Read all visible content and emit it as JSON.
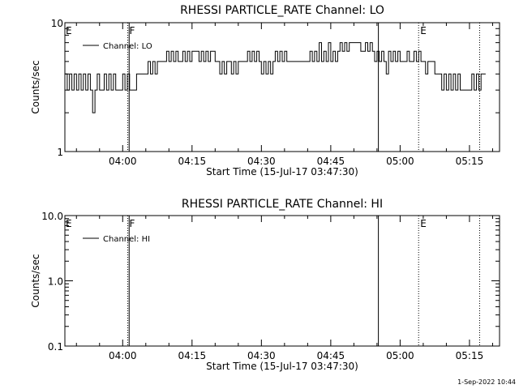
{
  "footer": {
    "timestamp": "1-Sep-2022 10:44"
  },
  "chart_data": [
    {
      "type": "line",
      "title": "RHESSI PARTICLE_RATE Channel: LO",
      "xlabel": "Start Time (15-Jul-17 03:47:30)",
      "ylabel": "Counts/sec",
      "yscale": "log",
      "ylim": [
        1,
        10
      ],
      "yticks": [
        1,
        10
      ],
      "ytick_labels": [
        "1",
        "10"
      ],
      "xlim_minutes": [
        0,
        94
      ],
      "xticks_minutes": [
        12.5,
        27.5,
        42.5,
        57.5,
        72.5,
        87.5
      ],
      "xtick_labels": [
        "04:00",
        "04:15",
        "04:30",
        "04:45",
        "05:00",
        "05:15"
      ],
      "legend": {
        "position": "top-left",
        "entries": [
          "Channel: LO"
        ]
      },
      "vlines": [
        {
          "x": 13.6,
          "style": "dotted",
          "label": "F"
        },
        {
          "x": 13.9,
          "style": "solid",
          "label": ""
        },
        {
          "x": 67.8,
          "style": "solid",
          "label": ""
        },
        {
          "x": 76.5,
          "style": "dotted",
          "label": "E"
        },
        {
          "x": 89.7,
          "style": "dotted",
          "label": ""
        }
      ],
      "edge_labels": [
        {
          "x": 0,
          "label": "E"
        }
      ],
      "series": [
        {
          "x": [
            0,
            0.5,
            1,
            1.5,
            2,
            2.5,
            3,
            3.5,
            4,
            4.5,
            5,
            5.5,
            6,
            6.5,
            7,
            7.5,
            8,
            8.5,
            9,
            9.5,
            10,
            10.5,
            11,
            11.5,
            12,
            12.5,
            13,
            13.5,
            14,
            14.5,
            15,
            15.5,
            16,
            16.5,
            17,
            17.5,
            18,
            18.5,
            19,
            19.5,
            20,
            20.5,
            21,
            21.5,
            22,
            22.5,
            23,
            23.5,
            24,
            24.5,
            25,
            25.5,
            26,
            26.5,
            27,
            27.5,
            28,
            28.5,
            29,
            29.5,
            30,
            30.5,
            31,
            31.5,
            32,
            32.5,
            33,
            33.5,
            34,
            34.5,
            35,
            35.5,
            36,
            36.5,
            37,
            37.5,
            38,
            38.5,
            39,
            39.5,
            40,
            40.5,
            41,
            41.5,
            42,
            42.5,
            43,
            43.5,
            44,
            44.5,
            45,
            45.5,
            46,
            46.5,
            47,
            47.5,
            48,
            48.5,
            49,
            49.5,
            50,
            50.5,
            51,
            51.5,
            52,
            52.5,
            53,
            53.5,
            54,
            54.5,
            55,
            55.5,
            56,
            56.5,
            57,
            57.5,
            58,
            58.5,
            59,
            59.5,
            60,
            60.5,
            61,
            61.5,
            62,
            62.5,
            63,
            63.5,
            64,
            64.5,
            65,
            65.5,
            66,
            66.5,
            67,
            67.5,
            68,
            68.5,
            69,
            69.5,
            70,
            70.5,
            71,
            71.5,
            72,
            72.5,
            73,
            73.5,
            74,
            74.5,
            75,
            75.5,
            76,
            76.5,
            77,
            77.5,
            78,
            78.5,
            79,
            79.5,
            80,
            80.5,
            81,
            81.5,
            82,
            82.5,
            83,
            83.5,
            84,
            84.5,
            85,
            85.5,
            86,
            86.5,
            87,
            87.5,
            88,
            88.5,
            89,
            89.5,
            90,
            90.5
          ],
          "values": [
            4,
            3,
            4,
            3,
            4,
            3,
            4,
            3,
            4,
            3,
            4,
            3,
            2,
            3,
            4,
            3,
            3,
            4,
            3,
            4,
            3,
            4,
            3,
            3,
            3,
            4,
            3,
            4,
            3,
            3,
            3,
            4,
            4,
            4,
            4,
            4,
            5,
            4,
            5,
            4,
            5,
            5,
            5,
            5,
            6,
            5,
            6,
            5,
            6,
            5,
            5,
            6,
            5,
            6,
            5,
            6,
            6,
            6,
            5,
            6,
            5,
            6,
            5,
            6,
            6,
            5,
            5,
            4,
            5,
            4,
            5,
            5,
            4,
            5,
            4,
            5,
            5,
            5,
            5,
            6,
            5,
            6,
            5,
            6,
            5,
            4,
            5,
            4,
            5,
            4,
            5,
            6,
            5,
            6,
            5,
            6,
            5,
            5,
            5,
            5,
            5,
            5,
            5,
            5,
            5,
            5,
            6,
            5,
            6,
            5,
            7,
            5,
            6,
            5,
            7,
            5,
            6,
            5,
            6,
            7,
            6,
            7,
            6,
            7,
            7,
            7,
            7,
            7,
            6,
            6,
            7,
            6,
            7,
            6,
            5,
            6,
            5,
            6,
            5,
            4,
            6,
            5,
            6,
            5,
            6,
            5,
            5,
            5,
            6,
            5,
            5,
            6,
            5,
            6,
            5,
            5,
            4,
            5,
            5,
            5,
            4,
            4,
            4,
            3,
            4,
            3,
            4,
            3,
            4,
            3,
            4,
            3,
            3,
            3,
            3,
            3,
            4,
            3,
            4,
            3,
            4,
            4
          ]
        }
      ]
    },
    {
      "type": "line",
      "title": "RHESSI PARTICLE_RATE Channel: HI",
      "xlabel": "Start Time (15-Jul-17 03:47:30)",
      "ylabel": "Counts/sec",
      "yscale": "log",
      "ylim": [
        0.1,
        10
      ],
      "yticks": [
        0.1,
        1,
        10
      ],
      "ytick_labels": [
        "0.1",
        "1.0",
        "10.0"
      ],
      "xlim_minutes": [
        0,
        94
      ],
      "xticks_minutes": [
        12.5,
        27.5,
        42.5,
        57.5,
        72.5,
        87.5
      ],
      "xtick_labels": [
        "04:00",
        "04:15",
        "04:30",
        "04:45",
        "05:00",
        "05:15"
      ],
      "legend": {
        "position": "top-left",
        "entries": [
          "Channel: HI"
        ]
      },
      "vlines": [
        {
          "x": 13.6,
          "style": "dotted",
          "label": "F"
        },
        {
          "x": 13.9,
          "style": "solid",
          "label": ""
        },
        {
          "x": 67.8,
          "style": "solid",
          "label": ""
        },
        {
          "x": 76.5,
          "style": "dotted",
          "label": "E"
        },
        {
          "x": 89.7,
          "style": "dotted",
          "label": ""
        }
      ],
      "edge_labels": [
        {
          "x": 0,
          "label": "E"
        }
      ],
      "series": [
        {
          "x": [],
          "values": []
        }
      ]
    }
  ]
}
